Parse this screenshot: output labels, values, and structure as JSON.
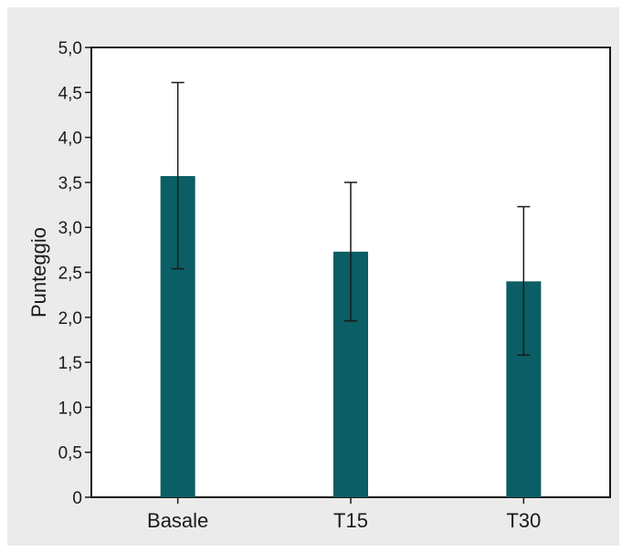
{
  "chart_data": {
    "type": "bar",
    "title": "",
    "xlabel": "",
    "ylabel": "Punteggio",
    "ylim": [
      0,
      5
    ],
    "grid": false,
    "legend": "none",
    "categories": [
      "Basale",
      "T15",
      "T30"
    ],
    "values": [
      3.57,
      2.73,
      2.4
    ],
    "error_low": [
      2.54,
      1.96,
      1.58
    ],
    "error_high": [
      4.61,
      3.5,
      3.23
    ],
    "yticks": [
      "0",
      "0,5",
      "1,0",
      "1,5",
      "2,0",
      "2,5",
      "3,0",
      "3,5",
      "4,0",
      "4,5",
      "5,0"
    ],
    "bar_color": "#0b5e66",
    "background_color": "#ebebeb",
    "plot_background_color": "#ffffff"
  }
}
